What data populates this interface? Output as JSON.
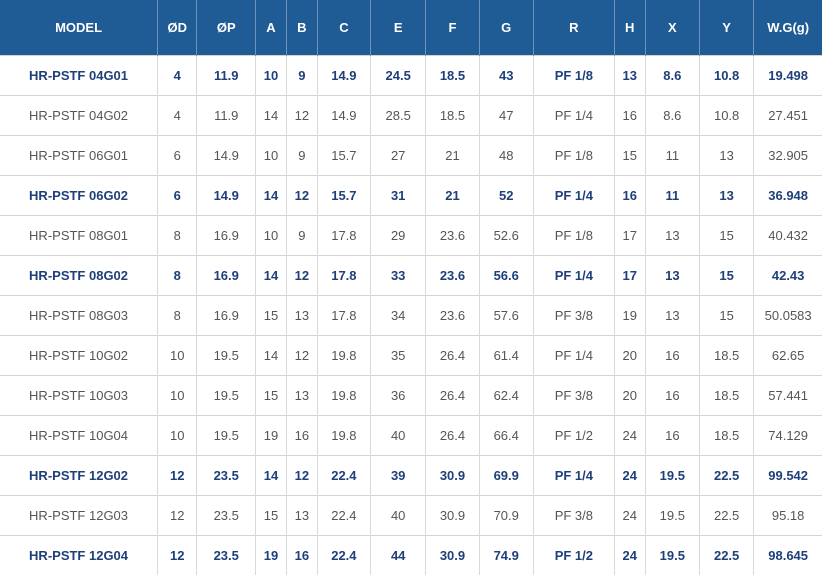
{
  "table": {
    "headers": [
      "MODEL",
      "ØD",
      "ØP",
      "A",
      "B",
      "C",
      "E",
      "F",
      "G",
      "R",
      "H",
      "X",
      "Y",
      "W.G(g)"
    ],
    "rows": [
      {
        "highlight": true,
        "cells": [
          "HR-PSTF 04G01",
          "4",
          "11.9",
          "10",
          "9",
          "14.9",
          "24.5",
          "18.5",
          "43",
          "PF 1/8",
          "13",
          "8.6",
          "10.8",
          "19.498"
        ]
      },
      {
        "highlight": false,
        "cells": [
          "HR-PSTF 04G02",
          "4",
          "11.9",
          "14",
          "12",
          "14.9",
          "28.5",
          "18.5",
          "47",
          "PF 1/4",
          "16",
          "8.6",
          "10.8",
          "27.451"
        ]
      },
      {
        "highlight": false,
        "cells": [
          "HR-PSTF 06G01",
          "6",
          "14.9",
          "10",
          "9",
          "15.7",
          "27",
          "21",
          "48",
          "PF 1/8",
          "15",
          "11",
          "13",
          "32.905"
        ]
      },
      {
        "highlight": true,
        "cells": [
          "HR-PSTF 06G02",
          "6",
          "14.9",
          "14",
          "12",
          "15.7",
          "31",
          "21",
          "52",
          "PF 1/4",
          "16",
          "11",
          "13",
          "36.948"
        ]
      },
      {
        "highlight": false,
        "cells": [
          "HR-PSTF 08G01",
          "8",
          "16.9",
          "10",
          "9",
          "17.8",
          "29",
          "23.6",
          "52.6",
          "PF 1/8",
          "17",
          "13",
          "15",
          "40.432"
        ]
      },
      {
        "highlight": true,
        "cells": [
          "HR-PSTF 08G02",
          "8",
          "16.9",
          "14",
          "12",
          "17.8",
          "33",
          "23.6",
          "56.6",
          "PF 1/4",
          "17",
          "13",
          "15",
          "42.43"
        ]
      },
      {
        "highlight": false,
        "cells": [
          "HR-PSTF 08G03",
          "8",
          "16.9",
          "15",
          "13",
          "17.8",
          "34",
          "23.6",
          "57.6",
          "PF 3/8",
          "19",
          "13",
          "15",
          "50.0583"
        ]
      },
      {
        "highlight": false,
        "cells": [
          "HR-PSTF 10G02",
          "10",
          "19.5",
          "14",
          "12",
          "19.8",
          "35",
          "26.4",
          "61.4",
          "PF 1/4",
          "20",
          "16",
          "18.5",
          "62.65"
        ]
      },
      {
        "highlight": false,
        "cells": [
          "HR-PSTF 10G03",
          "10",
          "19.5",
          "15",
          "13",
          "19.8",
          "36",
          "26.4",
          "62.4",
          "PF 3/8",
          "20",
          "16",
          "18.5",
          "57.441"
        ]
      },
      {
        "highlight": false,
        "cells": [
          "HR-PSTF 10G04",
          "10",
          "19.5",
          "19",
          "16",
          "19.8",
          "40",
          "26.4",
          "66.4",
          "PF 1/2",
          "24",
          "16",
          "18.5",
          "74.129"
        ]
      },
      {
        "highlight": true,
        "cells": [
          "HR-PSTF 12G02",
          "12",
          "23.5",
          "14",
          "12",
          "22.4",
          "39",
          "30.9",
          "69.9",
          "PF 1/4",
          "24",
          "19.5",
          "22.5",
          "99.542"
        ]
      },
      {
        "highlight": false,
        "cells": [
          "HR-PSTF 12G03",
          "12",
          "23.5",
          "15",
          "13",
          "22.4",
          "40",
          "30.9",
          "70.9",
          "PF 3/8",
          "24",
          "19.5",
          "22.5",
          "95.18"
        ]
      },
      {
        "highlight": true,
        "cells": [
          "HR-PSTF 12G04",
          "12",
          "23.5",
          "19",
          "16",
          "22.4",
          "44",
          "30.9",
          "74.9",
          "PF 1/2",
          "24",
          "19.5",
          "22.5",
          "98.645"
        ]
      }
    ]
  }
}
